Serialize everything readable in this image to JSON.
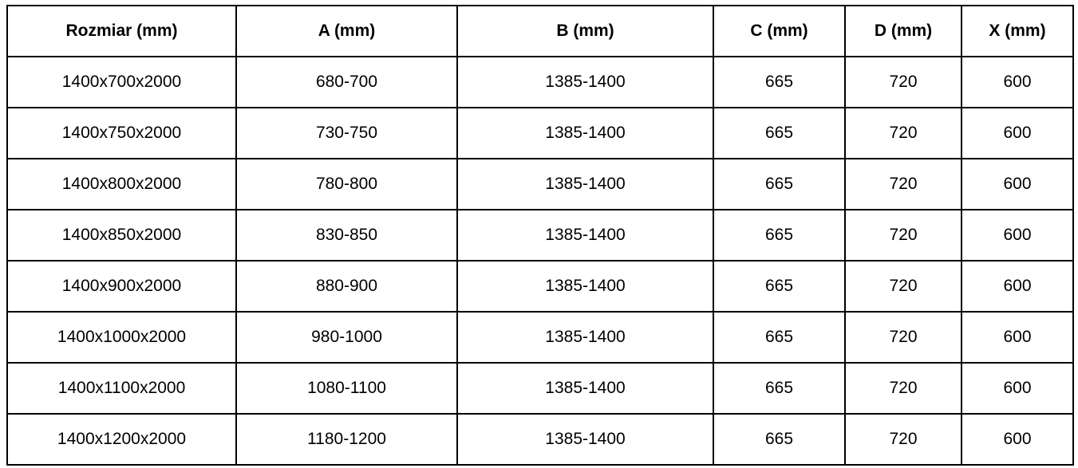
{
  "table": {
    "columns": [
      {
        "key": "rozmiar",
        "label": "Rozmiar (mm)"
      },
      {
        "key": "a",
        "label": "A (mm)"
      },
      {
        "key": "b",
        "label": "B (mm)"
      },
      {
        "key": "c",
        "label": "C (mm)"
      },
      {
        "key": "d",
        "label": "D (mm)"
      },
      {
        "key": "x",
        "label": "X (mm)"
      }
    ],
    "rows": [
      [
        "1400x700x2000",
        "680-700",
        "1385-1400",
        "665",
        "720",
        "600"
      ],
      [
        "1400x750x2000",
        "730-750",
        "1385-1400",
        "665",
        "720",
        "600"
      ],
      [
        "1400x800x2000",
        "780-800",
        "1385-1400",
        "665",
        "720",
        "600"
      ],
      [
        "1400x850x2000",
        "830-850",
        "1385-1400",
        "665",
        "720",
        "600"
      ],
      [
        "1400x900x2000",
        "880-900",
        "1385-1400",
        "665",
        "720",
        "600"
      ],
      [
        "1400x1000x2000",
        "980-1000",
        "1385-1400",
        "665",
        "720",
        "600"
      ],
      [
        "1400x1100x2000",
        "1080-1100",
        "1385-1400",
        "665",
        "720",
        "600"
      ],
      [
        "1400x1200x2000",
        "1180-1200",
        "1385-1400",
        "665",
        "720",
        "600"
      ]
    ]
  },
  "colors": {
    "border": "#000000",
    "text": "#000000",
    "background": "#ffffff"
  }
}
